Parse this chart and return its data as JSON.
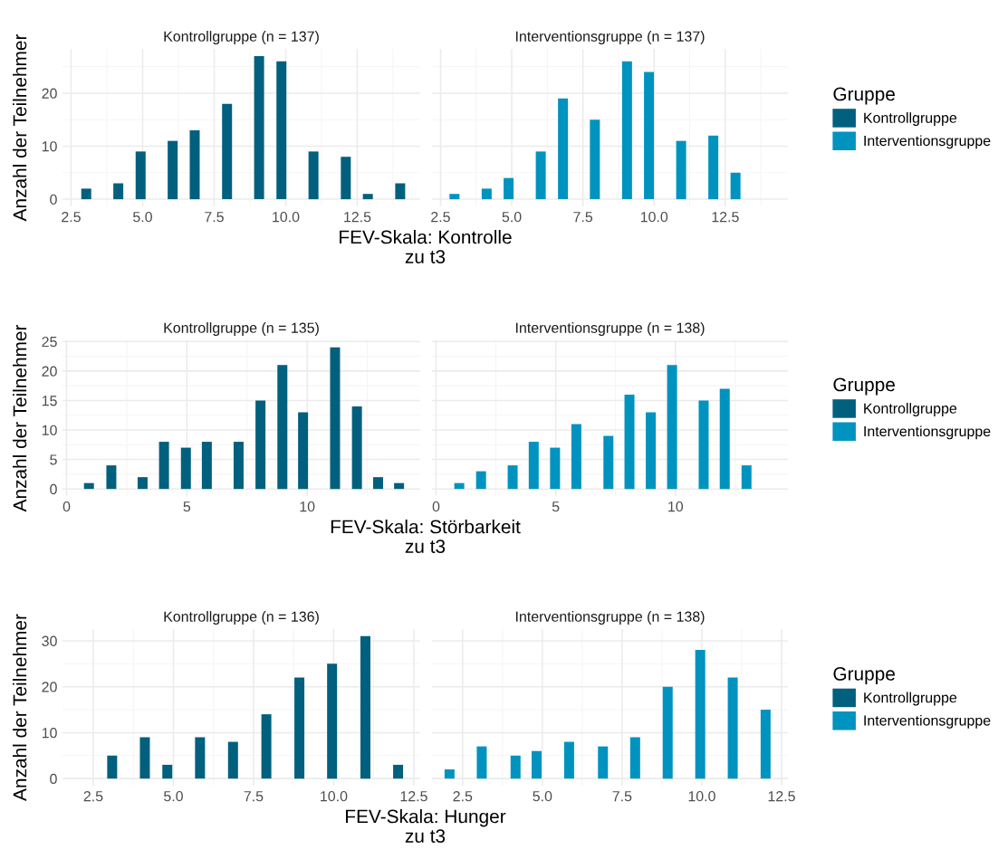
{
  "chart_data": [
    {
      "type": "bar",
      "title": "Kontrollgruppe (n = 137)",
      "ylabel": "Anzahl der Teilnehmer",
      "xlabel": "FEV-Skala: Kontrolle\nzu t3",
      "xlim": [
        2.2,
        14.7
      ],
      "xticks": [
        {
          "value": 2.5,
          "label": "2.5"
        },
        {
          "value": 5,
          "label": "5.0"
        },
        {
          "value": 7.5,
          "label": "7.5"
        },
        {
          "value": 10,
          "label": "10.0"
        },
        {
          "value": 12.5,
          "label": "12.5"
        }
      ],
      "ylim": [
        -1.35,
        28.35
      ],
      "yticks": [
        0,
        10,
        20
      ],
      "grid": true,
      "series": [
        {
          "name": "Kontrollgruppe",
          "color": "#00607d",
          "x": [
            3.03,
            4.15,
            4.93,
            6.05,
            6.82,
            7.95,
            9.07,
            9.85,
            10.97,
            12.1,
            12.87,
            14.0
          ],
          "values": [
            2,
            3,
            9,
            11,
            13,
            18,
            27,
            26,
            9,
            8,
            1,
            3
          ]
        }
      ]
    },
    {
      "type": "bar",
      "title": "Interventionsgruppe (n = 137)",
      "xlim": [
        2.2,
        14.7
      ],
      "xticks": [
        {
          "value": 2.5,
          "label": "2.5"
        },
        {
          "value": 5,
          "label": "5.0"
        },
        {
          "value": 7.5,
          "label": "7.5"
        },
        {
          "value": 10,
          "label": "10.0"
        },
        {
          "value": 12.5,
          "label": "12.5"
        }
      ],
      "ylim": [
        -1.35,
        28.35
      ],
      "yticks": [
        0,
        10,
        20
      ],
      "grid": true,
      "tick_labels": "x",
      "legend": "right",
      "legend_title": "Gruppe",
      "series": [
        {
          "name": "Interventionsgruppe",
          "color": "#0093bf",
          "x": [
            2.99,
            4.12,
            4.89,
            6.02,
            6.8,
            7.92,
            9.05,
            9.82,
            10.95,
            12.08,
            12.86
          ],
          "values": [
            1,
            2,
            4,
            9,
            19,
            15,
            26,
            24,
            11,
            12,
            5
          ]
        }
      ]
    },
    {
      "type": "bar",
      "title": "Kontrollgruppe (n = 135)",
      "ylabel": "Anzahl der Teilnehmer",
      "xlabel": "FEV-Skala: Störbarkeit\nzu t3",
      "xlim": [
        -0.17,
        14.7
      ],
      "xticks": [
        0,
        5,
        10
      ],
      "ylim": [
        -1.2,
        25.2
      ],
      "yticks": [
        0,
        5,
        10,
        15,
        20,
        25
      ],
      "grid": true,
      "series": [
        {
          "name": "Kontrollgruppe",
          "color": "#00607d",
          "x": [
            0.93,
            1.86,
            3.16,
            4.05,
            4.96,
            5.83,
            7.15,
            8.06,
            8.97,
            9.83,
            11.16,
            12.07,
            12.95,
            13.82
          ],
          "values": [
            1,
            4,
            2,
            8,
            7,
            8,
            8,
            15,
            21,
            13,
            24,
            14,
            2,
            1
          ]
        }
      ]
    },
    {
      "type": "bar",
      "title": "Interventionsgruppe (n = 138)",
      "xlim": [
        -0.17,
        14.7
      ],
      "xticks": [
        0,
        5,
        10
      ],
      "ylim": [
        -1.2,
        25.2
      ],
      "yticks": [
        0,
        5,
        10,
        15,
        20,
        25
      ],
      "grid": true,
      "tick_labels": "x",
      "legend": "right",
      "legend_title": "Gruppe",
      "series": [
        {
          "name": "Interventionsgruppe",
          "color": "#0093bf",
          "x": [
            0.97,
            1.88,
            3.2,
            4.08,
            4.97,
            5.86,
            7.2,
            8.08,
            8.97,
            9.86,
            11.18,
            12.06,
            12.97
          ],
          "values": [
            1,
            3,
            4,
            8,
            7,
            11,
            9,
            16,
            13,
            21,
            15,
            17,
            4
          ]
        }
      ]
    },
    {
      "type": "bar",
      "title": "Kontrollgruppe (n = 136)",
      "ylabel": "Anzahl der Teilnehmer",
      "xlabel": "FEV-Skala: Hunger\nzu t3",
      "xlim": [
        1.54,
        12.7
      ],
      "xticks": [
        {
          "value": 2.5,
          "label": "2.5"
        },
        {
          "value": 5,
          "label": "5.0"
        },
        {
          "value": 7.5,
          "label": "7.5"
        },
        {
          "value": 10,
          "label": "10.0"
        },
        {
          "value": 12.5,
          "label": "12.5"
        }
      ],
      "ylim": [
        -1.55,
        32.55
      ],
      "yticks": [
        0,
        10,
        20,
        30
      ],
      "grid": true,
      "series": [
        {
          "name": "Kontrollgruppe",
          "color": "#00607d",
          "x": [
            3.09,
            4.11,
            4.81,
            5.83,
            6.86,
            7.9,
            8.93,
            9.95,
            10.99,
            12.01
          ],
          "values": [
            5,
            9,
            3,
            9,
            8,
            14,
            22,
            25,
            31,
            3
          ]
        }
      ]
    },
    {
      "type": "bar",
      "title": "Interventionsgruppe (n = 138)",
      "xlim": [
        1.54,
        12.7
      ],
      "xticks": [
        {
          "value": 2.5,
          "label": "2.5"
        },
        {
          "value": 5,
          "label": "5.0"
        },
        {
          "value": 7.5,
          "label": "7.5"
        },
        {
          "value": 10,
          "label": "10.0"
        },
        {
          "value": 12.5,
          "label": "12.5"
        }
      ],
      "ylim": [
        -1.55,
        32.55
      ],
      "yticks": [
        0,
        10,
        20,
        30
      ],
      "grid": true,
      "tick_labels": "x",
      "legend": "right",
      "legend_title": "Gruppe",
      "series": [
        {
          "name": "Interventionsgruppe",
          "color": "#0093bf",
          "x": [
            2.09,
            3.1,
            4.16,
            4.82,
            5.84,
            6.9,
            7.91,
            8.93,
            9.95,
            10.97,
            12.0
          ],
          "values": [
            2,
            7,
            5,
            6,
            8,
            7,
            9,
            20,
            28,
            22,
            15
          ]
        }
      ]
    }
  ]
}
